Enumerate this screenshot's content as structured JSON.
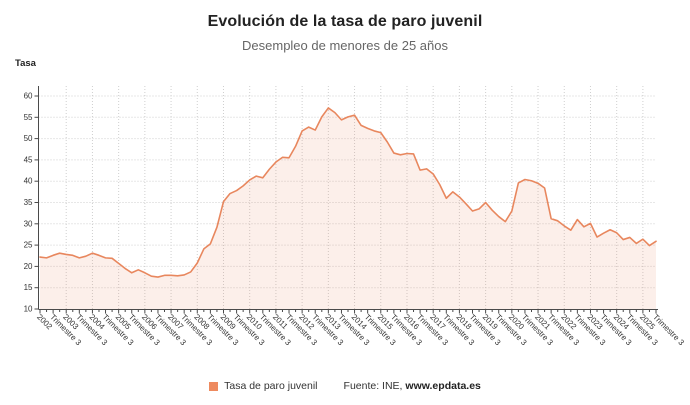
{
  "header": {
    "title": "Evolución de la tasa de paro juvenil",
    "subtitle": "Desempleo de menores de 25 años"
  },
  "legend": {
    "series_label": "Tasa de paro juvenil",
    "swatch_color": "#ee8a5f"
  },
  "footer": {
    "source_prefix": "Fuente: INE,",
    "source_site": "www.epdata.es"
  },
  "chart_data": {
    "type": "area",
    "title": "Evolución de la tasa de paro juvenil",
    "subtitle": "Desempleo de menores de 25 años",
    "xlabel": "",
    "ylabel": "Tasa",
    "ylim": [
      10,
      60
    ],
    "y_ticks": [
      10,
      15,
      20,
      25,
      30,
      35,
      40,
      45,
      50,
      55,
      60
    ],
    "grid": "dotted",
    "legend_position": "bottom",
    "x_start": "2002 Trimestre 1",
    "x_end": "2025 Trimestre 3",
    "x_step": "1 trimestre",
    "x_tick_labels": [
      "2002",
      "Trimestre 3",
      "2003",
      "Trimestre 3",
      "2004",
      "Trimestre 3",
      "2005",
      "Trimestre 3",
      "2006",
      "Trimestre 3",
      "2007",
      "Trimestre 3",
      "2008",
      "Trimestre 3",
      "2009",
      "Trimestre 3",
      "2010",
      "Trimestre 3",
      "2011",
      "Trimestre 3",
      "2012",
      "Trimestre 3",
      "2013",
      "Trimestre 3",
      "2014",
      "Trimestre 3",
      "2015",
      "Trimestre 3",
      "2016",
      "Trimestre 3",
      "2017",
      "Trimestre 3",
      "2018",
      "Trimestre 3",
      "2019",
      "Trimestre 3",
      "2020",
      "Trimestre 3",
      "2021",
      "Trimestre 3",
      "2022",
      "Trimestre 3",
      "2023",
      "Trimestre 3",
      "2024",
      "Trimestre 3",
      "2025",
      "Trimestre 3"
    ],
    "series": [
      {
        "name": "Tasa de paro juvenil",
        "values": [
          22.2,
          22.0,
          22.6,
          23.1,
          22.8,
          22.6,
          22.0,
          22.4,
          23.1,
          22.6,
          22.0,
          21.9,
          20.7,
          19.5,
          18.5,
          19.2,
          18.5,
          17.7,
          17.5,
          17.9,
          17.9,
          17.8,
          18.0,
          18.7,
          20.8,
          24.1,
          25.3,
          29.2,
          35.2,
          37.1,
          37.8,
          38.9,
          40.3,
          41.2,
          40.8,
          42.8,
          44.5,
          45.6,
          45.5,
          48.2,
          51.8,
          52.7,
          52.0,
          55.1,
          57.2,
          56.1,
          54.4,
          55.1,
          55.5,
          53.1,
          52.4,
          51.8,
          51.4,
          49.2,
          46.6,
          46.2,
          46.5,
          46.4,
          42.6,
          42.9,
          41.7,
          39.2,
          36.0,
          37.5,
          36.3,
          34.7,
          33.0,
          33.5,
          35.0,
          33.2,
          31.7,
          30.5,
          33.0,
          39.6,
          40.4,
          40.1,
          39.5,
          38.4,
          31.2,
          30.7,
          29.5,
          28.5,
          31.0,
          29.3,
          30.1,
          26.9,
          27.8,
          28.6,
          27.9,
          26.3,
          26.8,
          25.4,
          26.4,
          24.9,
          25.9
        ]
      }
    ],
    "colors": {
      "line": "#e8875e",
      "fill": "rgba(232,135,94,0.13)",
      "grid": "#cfcfcf",
      "axis": "#4a4a4a",
      "tick_text": "#333333"
    }
  }
}
